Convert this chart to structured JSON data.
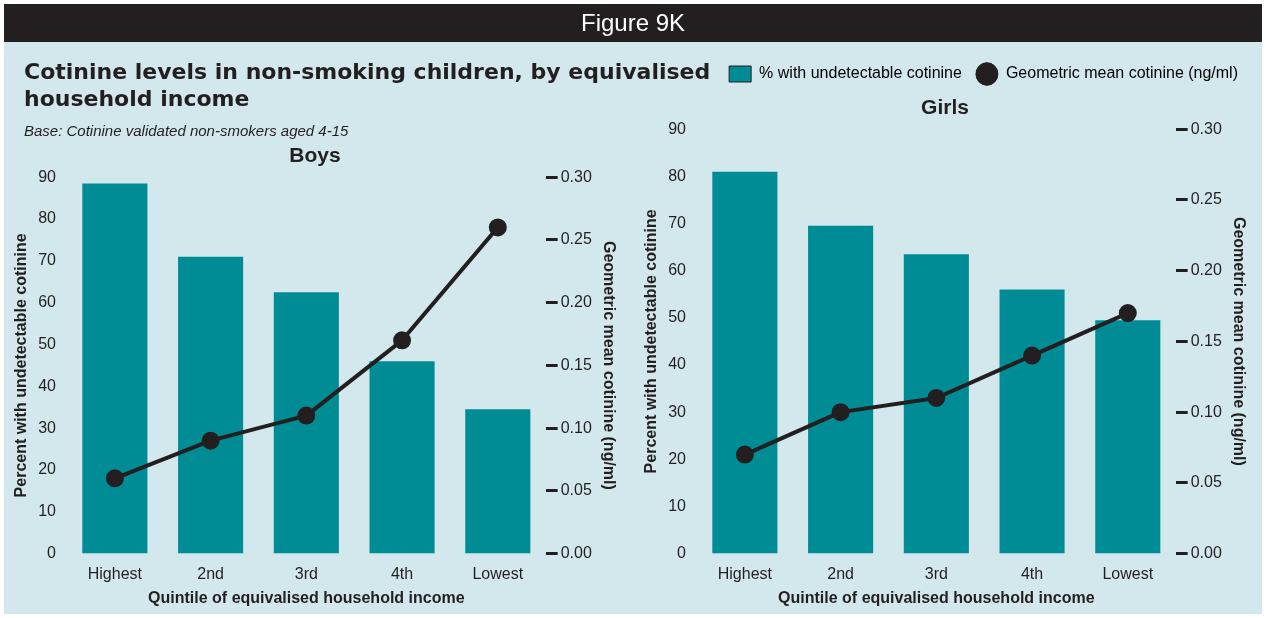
{
  "chart_data": [
    {
      "type": "other",
      "title": "Figure 9K",
      "subtitle": "Cotinine levels in non-smoking children, by equivalised household income",
      "annotations": [
        "Base: Cotinine validated non-smokers aged 4-15"
      ]
    },
    {
      "type": "bar",
      "title": "Boys",
      "categories": [
        "Highest",
        "2nd",
        "3rd",
        "4th",
        "Lowest"
      ],
      "xlabel": "Quintile of equivalised household income",
      "ylabel": "Percent with undetectable cotinine",
      "y2label": "Geometric mean cotinine (ng/ml)",
      "ylim": [
        0,
        90
      ],
      "yticks": [
        0,
        10,
        20,
        30,
        40,
        50,
        60,
        70,
        80,
        90
      ],
      "y2lim": [
        0,
        0.3
      ],
      "y2ticks": [
        {
          "value": 0,
          "label": "0.00"
        },
        {
          "value": 0.05,
          "label": "0.05"
        },
        {
          "value": 0.1,
          "label": "0.10"
        },
        {
          "value": 0.15,
          "label": "0.15"
        },
        {
          "value": 0.2,
          "label": "0.20"
        },
        {
          "value": 0.25,
          "label": "0.25"
        },
        {
          "value": 0.3,
          "label": "0.30"
        }
      ],
      "marker": "circle",
      "series": [
        {
          "type": "bar",
          "color": "#008c95",
          "values": [
            88.5,
            71,
            62.5,
            46,
            34.5
          ]
        },
        {
          "type": "line",
          "axis": "y2",
          "color": "#231f20",
          "values": [
            0.06,
            0.09,
            0.11,
            0.17,
            0.26
          ]
        }
      ]
    },
    {
      "type": "bar",
      "title": "Girls",
      "categories": [
        "Highest",
        "2nd",
        "3rd",
        "4th",
        "Lowest"
      ],
      "xlabel": "Quintile of equivalised household income",
      "ylabel": "Percent with undetectable cotinine",
      "y2label": "Geometric mean cotinine (ng/ml)",
      "ylim": [
        0,
        90
      ],
      "yticks": [
        0,
        10,
        20,
        30,
        40,
        50,
        60,
        70,
        80,
        90
      ],
      "y2lim": [
        0,
        0.3
      ],
      "y2ticks": [
        {
          "value": 0,
          "label": "0.00"
        },
        {
          "value": 0.05,
          "label": "0.05"
        },
        {
          "value": 0.1,
          "label": "0.10"
        },
        {
          "value": 0.15,
          "label": "0.15"
        },
        {
          "value": 0.2,
          "label": "0.20"
        },
        {
          "value": 0.25,
          "label": "0.25"
        },
        {
          "value": 0.3,
          "label": "0.30"
        }
      ],
      "marker": "circle",
      "legend": "top right",
      "series": [
        {
          "type": "bar",
          "name": "% with undetectable cotinine",
          "color": "#008c95",
          "values": [
            81,
            69.5,
            63.5,
            56,
            49.5
          ]
        },
        {
          "type": "line",
          "name": "Geometric mean cotinine (ng/ml)",
          "axis": "y2",
          "color": "#231f20",
          "values": [
            0.07,
            0.1,
            0.11,
            0.14,
            0.17
          ]
        }
      ]
    }
  ]
}
